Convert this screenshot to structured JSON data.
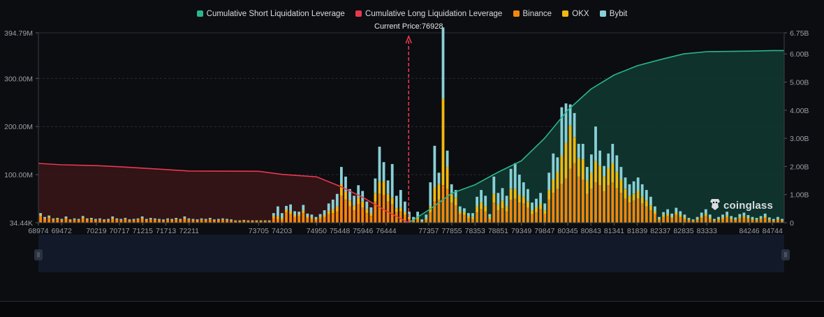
{
  "legend": [
    {
      "label": "Cumulative Short Liquidation Leverage",
      "color": "#2bb58e"
    },
    {
      "label": "Cumulative Long Liquidation Leverage",
      "color": "#e8384f"
    },
    {
      "label": "Binance",
      "color": "#f0880d"
    },
    {
      "label": "OKX",
      "color": "#f2b90f"
    },
    {
      "label": "Bybit",
      "color": "#88d0d6"
    }
  ],
  "current_price_label": "Current Price:76928",
  "watermark": "coinglass",
  "colors": {
    "background": "#0b0d10",
    "grid": "#2a2e36",
    "axis_text": "#9aa0a8",
    "short_line": "#2bb58e",
    "short_fill": "#103a31",
    "long_line": "#e8384f",
    "long_fill": "#3a1518",
    "current_price": "#e8384f"
  },
  "chart_data": {
    "type": "bar",
    "title": "",
    "left_axis": {
      "ticks": [
        "34.44K",
        "100.00M",
        "200.00M",
        "300.00M",
        "394.79M"
      ],
      "min": 0.03444,
      "max": 394.79,
      "unit": "M"
    },
    "right_axis": {
      "ticks": [
        "0",
        "1.00B",
        "2.00B",
        "3.00B",
        "4.00B",
        "5.00B",
        "6.00B",
        "6.75B"
      ],
      "min": 0,
      "max": 6.75,
      "unit": "B"
    },
    "x_ticks": [
      "68974",
      "69472",
      "70219",
      "70717",
      "71215",
      "71713",
      "72211",
      "73705",
      "74203",
      "74950",
      "75448",
      "75946",
      "76444",
      "77357",
      "77855",
      "78353",
      "78851",
      "79349",
      "79847",
      "80345",
      "80843",
      "81341",
      "81839",
      "82337",
      "82835",
      "83333",
      "84246",
      "84744"
    ],
    "current_price": 76928,
    "series": [
      {
        "name": "Binance",
        "values": [
          14,
          8,
          10,
          6,
          7,
          5,
          8,
          4,
          6,
          5,
          9,
          6,
          7,
          5,
          6,
          4,
          5,
          8,
          6,
          5,
          7,
          4,
          5,
          6,
          8,
          5,
          7,
          6,
          5,
          4,
          6,
          5,
          7,
          5,
          8,
          6,
          5,
          4,
          6,
          5,
          7,
          4,
          5,
          6,
          5,
          4,
          3,
          3,
          4,
          3,
          3,
          3,
          3,
          3,
          3,
          10,
          8,
          6,
          22,
          18,
          12,
          14,
          20,
          10,
          8,
          6,
          9,
          12,
          18,
          20,
          24,
          56,
          48,
          34,
          26,
          38,
          32,
          20,
          14,
          44,
          60,
          58,
          44,
          38,
          22,
          24,
          16,
          8,
          4,
          8,
          2,
          6,
          22,
          44,
          48,
          78,
          70,
          42,
          36,
          18,
          16,
          10,
          8,
          22,
          28,
          24,
          8,
          42,
          26,
          30,
          24,
          48,
          50,
          42,
          40,
          32,
          18,
          22,
          28,
          18,
          48,
          62,
          70,
          80,
          92,
          112,
          124,
          96,
          90,
          60,
          70,
          84,
          78,
          66,
          78,
          84,
          72,
          62,
          50,
          42,
          46,
          50,
          40,
          34,
          26,
          18,
          6,
          12,
          14,
          10,
          16,
          12,
          8,
          5,
          4,
          6,
          10,
          14,
          8,
          4,
          6,
          8,
          12,
          7,
          5,
          9,
          11,
          8,
          6,
          5,
          7,
          10,
          5,
          4,
          6,
          4
        ]
      },
      {
        "name": "OKX",
        "values": [
          2,
          1,
          2,
          1,
          1,
          1,
          2,
          1,
          1,
          1,
          2,
          1,
          1,
          1,
          1,
          1,
          1,
          2,
          1,
          1,
          1,
          1,
          1,
          1,
          2,
          1,
          1,
          1,
          1,
          1,
          1,
          1,
          1,
          1,
          2,
          1,
          1,
          1,
          1,
          1,
          1,
          1,
          1,
          1,
          1,
          1,
          1,
          1,
          1,
          1,
          1,
          1,
          1,
          1,
          1,
          4,
          6,
          4,
          5,
          6,
          4,
          3,
          5,
          3,
          3,
          2,
          3,
          4,
          6,
          8,
          10,
          24,
          16,
          12,
          10,
          14,
          12,
          8,
          6,
          18,
          26,
          28,
          16,
          14,
          8,
          8,
          6,
          3,
          2,
          3,
          1,
          3,
          12,
          30,
          32,
          180,
          46,
          18,
          16,
          6,
          6,
          4,
          4,
          12,
          14,
          10,
          4,
          18,
          12,
          16,
          10,
          22,
          20,
          16,
          14,
          12,
          8,
          10,
          12,
          8,
          20,
          28,
          36,
          60,
          74,
          90,
          54,
          38,
          42,
          28,
          34,
          44,
          40,
          30,
          36,
          40,
          34,
          28,
          20,
          14,
          14,
          16,
          14,
          12,
          10,
          6,
          2,
          4,
          4,
          3,
          5,
          4,
          3,
          2,
          1,
          2,
          3,
          4,
          3,
          1,
          2,
          3,
          3,
          2,
          2,
          3,
          3,
          2,
          2,
          2,
          2,
          3,
          2,
          1,
          2,
          1
        ]
      },
      {
        "name": "Bybit",
        "values": [
          4,
          3,
          3,
          2,
          2,
          2,
          3,
          2,
          2,
          2,
          3,
          2,
          2,
          2,
          2,
          2,
          2,
          3,
          2,
          2,
          2,
          2,
          2,
          2,
          3,
          2,
          2,
          2,
          2,
          2,
          2,
          2,
          2,
          2,
          3,
          2,
          2,
          2,
          2,
          2,
          2,
          2,
          2,
          2,
          2,
          2,
          1,
          1,
          1,
          1,
          1,
          1,
          1,
          1,
          1,
          6,
          20,
          10,
          8,
          14,
          8,
          6,
          12,
          6,
          6,
          4,
          6,
          10,
          16,
          20,
          26,
          36,
          32,
          24,
          20,
          26,
          22,
          16,
          12,
          30,
          72,
          40,
          28,
          70,
          26,
          36,
          22,
          12,
          6,
          12,
          4,
          8,
          50,
          86,
          24,
          148,
          34,
          20,
          16,
          10,
          8,
          6,
          8,
          20,
          26,
          22,
          6,
          36,
          24,
          26,
          22,
          42,
          54,
          42,
          30,
          26,
          16,
          18,
          22,
          14,
          36,
          54,
          30,
          100,
          82,
          44,
          50,
          30,
          32,
          28,
          38,
          72,
          32,
          22,
          30,
          40,
          34,
          26,
          24,
          24,
          26,
          28,
          26,
          22,
          18,
          10,
          4,
          6,
          10,
          6,
          10,
          8,
          6,
          3,
          2,
          4,
          8,
          10,
          6,
          3,
          4,
          6,
          8,
          5,
          4,
          6,
          7,
          6,
          4,
          3,
          5,
          6,
          4,
          3,
          4,
          3
        ]
      },
      {
        "name": "Cumulative Long Liquidation Leverage",
        "unit": "B",
        "x": [
          68974,
          69472,
          70219,
          70717,
          71215,
          71713,
          72211,
          73705,
          74203,
          74950,
          75448,
          75946,
          76444,
          76928
        ],
        "values": [
          2.11,
          2.06,
          2.03,
          1.99,
          1.94,
          1.89,
          1.84,
          1.83,
          1.72,
          1.63,
          1.3,
          0.9,
          0.42,
          0.0
        ]
      },
      {
        "name": "Cumulative Short Liquidation Leverage",
        "unit": "B",
        "x": [
          76928,
          77357,
          77855,
          78353,
          78851,
          79349,
          79847,
          80345,
          80843,
          81341,
          81839,
          82337,
          82835,
          83333,
          84246,
          84744,
          84995
        ],
        "values": [
          0.0,
          0.45,
          1.05,
          1.35,
          1.8,
          2.2,
          3.0,
          4.0,
          4.75,
          5.25,
          5.58,
          5.8,
          6.0,
          6.08,
          6.1,
          6.12,
          6.12
        ]
      }
    ]
  }
}
